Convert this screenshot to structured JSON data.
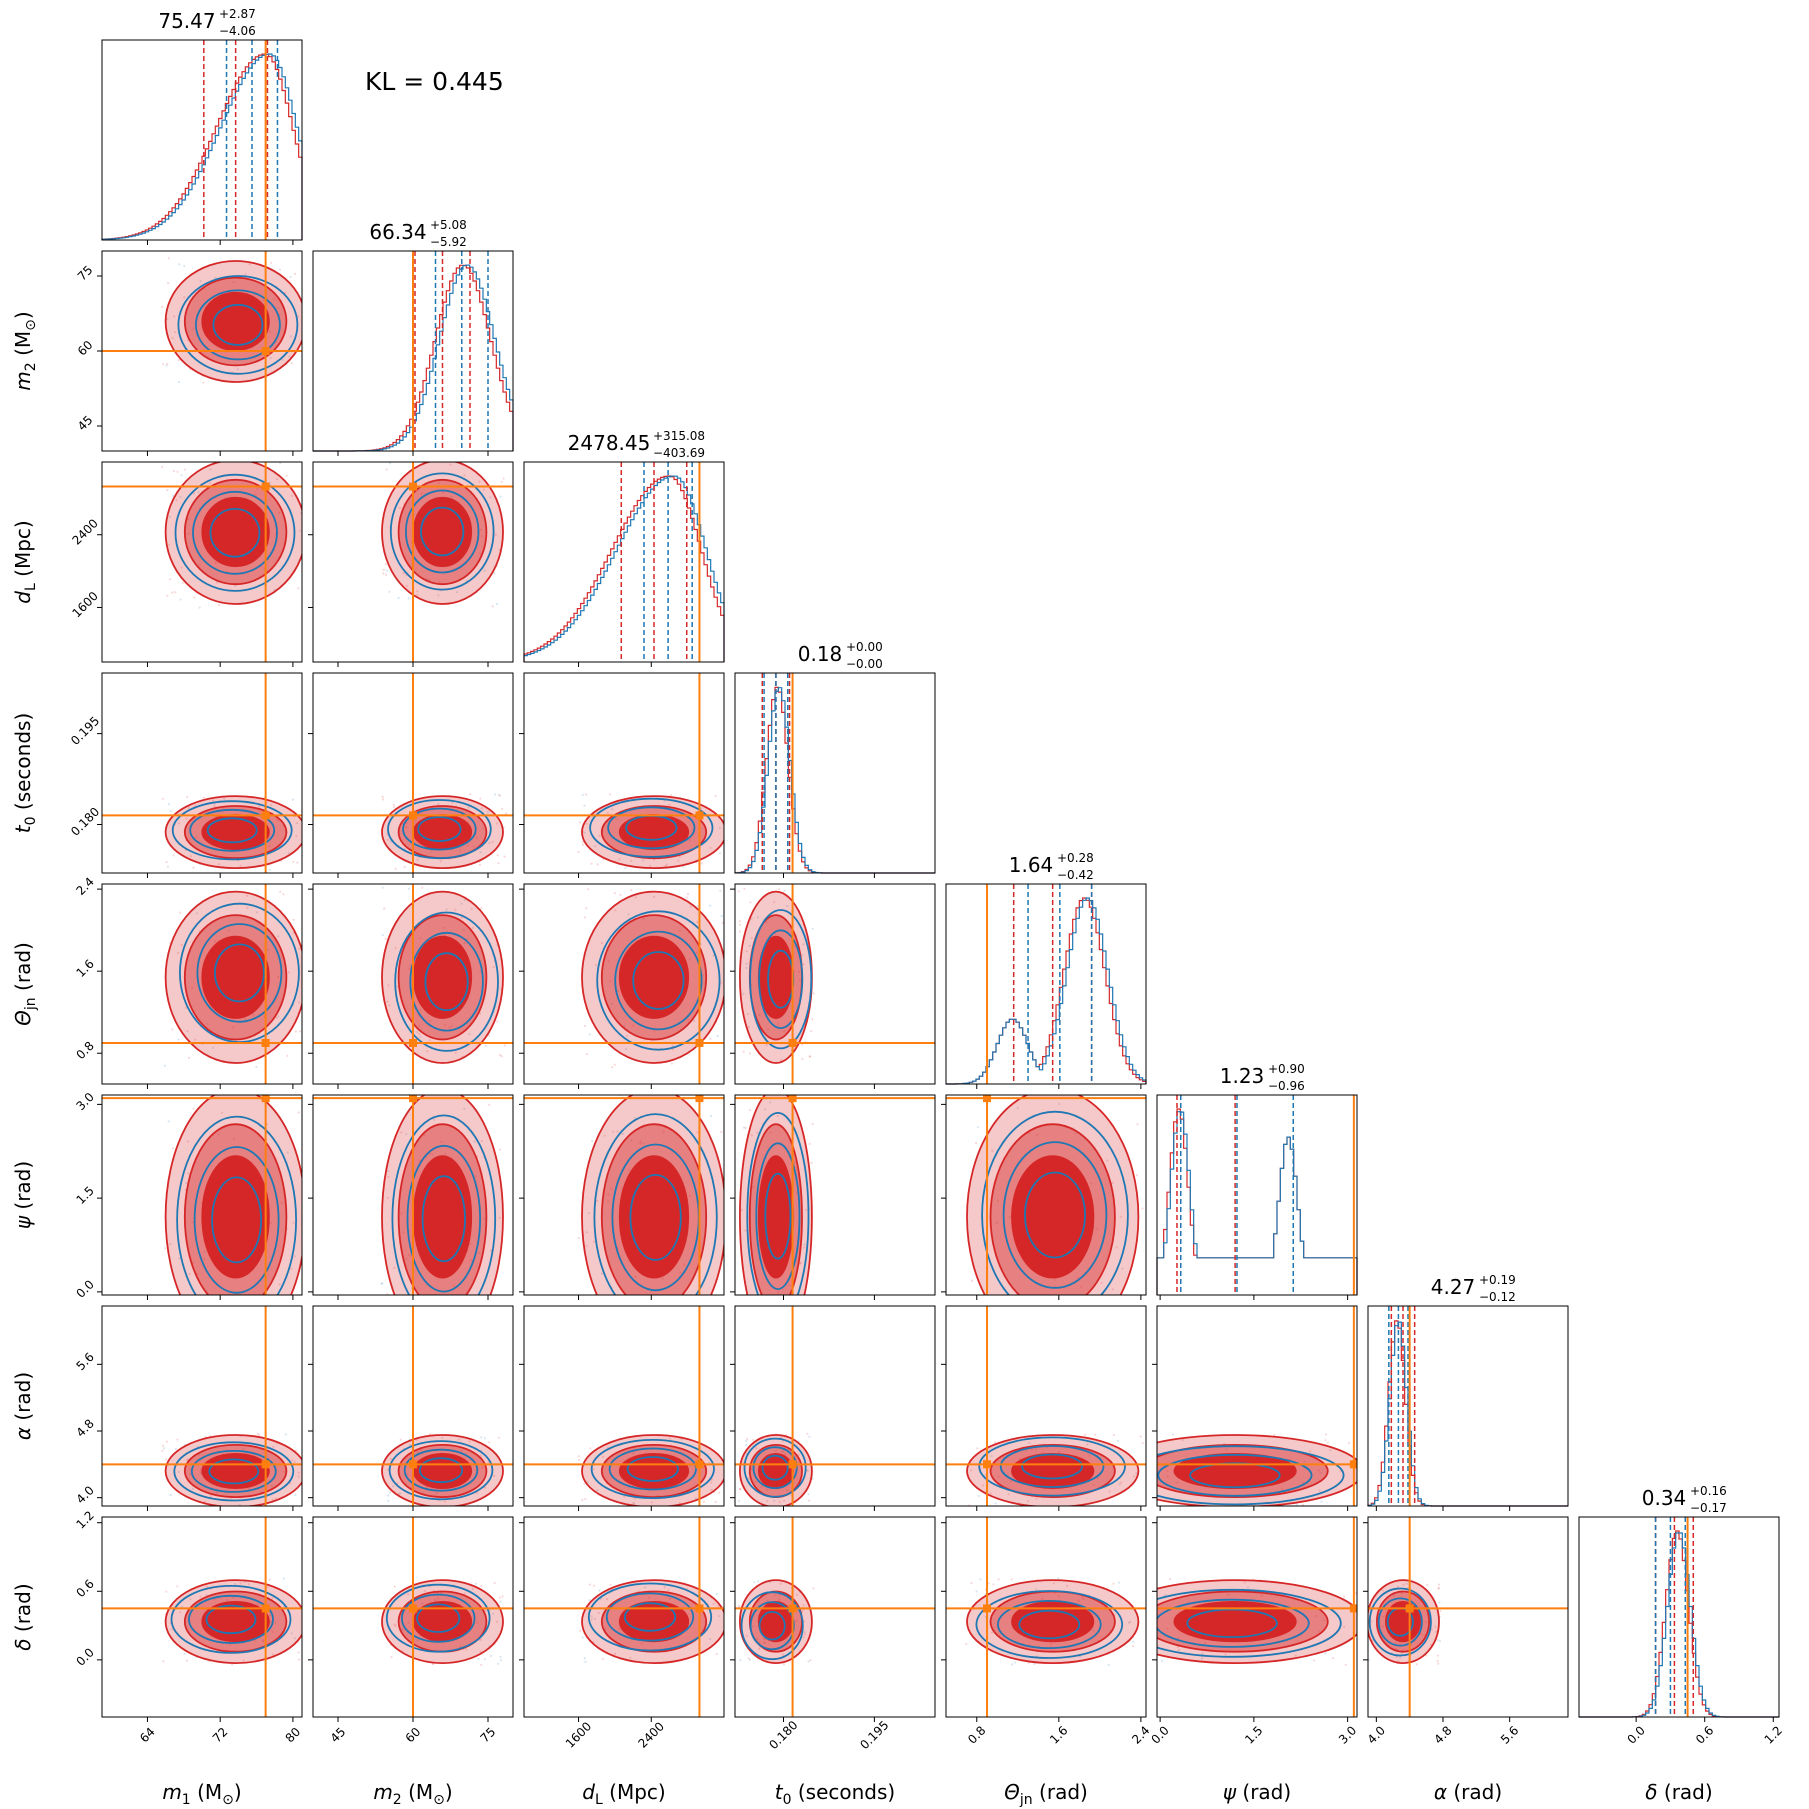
{
  "kl_text": "KL = 0.445",
  "colors": {
    "red": "#d62728",
    "blue": "#1f77b4",
    "truth": "#ff7f0e"
  },
  "params": [
    {
      "key": "m1",
      "label_sym": "m",
      "label_sub": "1",
      "label_unit": "(M",
      "label_unit_sub": "⊙",
      "label_unit_end": ")",
      "range": [
        59,
        81
      ],
      "ticks": [
        64,
        72,
        80
      ],
      "tick_labels": [
        "64",
        "72",
        "80"
      ],
      "truth": 77.0,
      "title_val": "75.47",
      "title_plus": "+2.87",
      "title_minus": "−4.06",
      "q_red": [
        70.2,
        77.2
      ],
      "q_blue": [
        72.7,
        78.3
      ],
      "hist_peak": 77,
      "hist_sd": 3.0,
      "hist_skew": -1
    },
    {
      "key": "m2",
      "label_sym": "m",
      "label_sub": "2",
      "label_unit": "(M",
      "label_unit_sub": "⊙",
      "label_unit_end": ")",
      "range": [
        40,
        80
      ],
      "ticks": [
        45,
        60,
        75
      ],
      "tick_labels": [
        "45",
        "60",
        "75"
      ],
      "truth": 60.0,
      "title_val": "66.34",
      "title_plus": "+5.08",
      "title_minus": "−5.92",
      "q_red": [
        60.4,
        71.4
      ],
      "q_blue": [
        64.5,
        75.0
      ],
      "hist_peak": 70,
      "hist_sd": 5.5,
      "hist_skew": 0
    },
    {
      "key": "dl",
      "label_sym": "d",
      "label_sub": "L",
      "label_unit": "(Mpc)",
      "label_unit_sub": "",
      "label_unit_end": "",
      "range": [
        1000,
        3200
      ],
      "ticks": [
        1600,
        2400
      ],
      "tick_labels": [
        "1600",
        "2400"
      ],
      "truth": 2930,
      "title_val": "2478.45",
      "title_plus": "+315.08",
      "title_minus": "−403.69",
      "q_red": [
        2070,
        2790
      ],
      "q_blue": [
        2320,
        2850
      ],
      "hist_peak": 2600,
      "hist_sd": 350,
      "hist_skew": -1
    },
    {
      "key": "t0",
      "label_sym": "t",
      "label_sub": "0",
      "label_unit": "(seconds)",
      "label_unit_sub": "",
      "label_unit_end": "",
      "range": [
        0.172,
        0.205
      ],
      "ticks": [
        0.18,
        0.195
      ],
      "tick_labels": [
        "0.180",
        "0.195"
      ],
      "truth": 0.1815,
      "title_val": "0.18",
      "title_plus": "+0.00",
      "title_minus": "−0.00",
      "q_red": [
        0.1765,
        0.181
      ],
      "q_blue": [
        0.1768,
        0.1807
      ],
      "hist_peak": 0.179,
      "hist_sd": 0.0018,
      "hist_skew": 0
    },
    {
      "key": "thetajn",
      "label_sym": "Θ",
      "label_sub": "jn",
      "label_unit": "(rad)",
      "label_unit_sub": "",
      "label_unit_end": "",
      "range": [
        0.5,
        2.45
      ],
      "ticks": [
        0.8,
        1.6,
        2.4
      ],
      "tick_labels": [
        "0.8",
        "1.6",
        "2.4"
      ],
      "truth": 0.9,
      "title_val": "1.64",
      "title_plus": "+0.28",
      "title_minus": "−0.42",
      "q_red": [
        1.16,
        1.92
      ],
      "q_blue": [
        1.3,
        1.92
      ],
      "hist_peak": 1.85,
      "hist_sd": 0.2,
      "hist_skew": 0
    },
    {
      "key": "psi",
      "label_sym": "ψ",
      "label_sub": "",
      "label_unit": "(rad)",
      "label_unit_sub": "",
      "label_unit_end": "",
      "range": [
        -0.05,
        3.15
      ],
      "ticks": [
        0.0,
        1.5,
        3.0
      ],
      "tick_labels": [
        "0.0",
        "1.5",
        "3.0"
      ],
      "truth": 3.1,
      "title_val": "1.23",
      "title_plus": "+0.90",
      "title_minus": "−0.96",
      "q_red": [
        0.27,
        2.13
      ],
      "q_blue": [
        0.33,
        2.13
      ],
      "hist_peak": 0.3,
      "hist_sd": 0.15,
      "hist_skew": 0
    },
    {
      "key": "alpha",
      "label_sym": "α",
      "label_sub": "",
      "label_unit": "(rad)",
      "label_unit_sub": "",
      "label_unit_end": "",
      "range": [
        3.9,
        6.3
      ],
      "ticks": [
        4.0,
        4.8,
        5.6
      ],
      "tick_labels": [
        "4.0",
        "4.8",
        "5.6"
      ],
      "truth": 4.4,
      "title_val": "4.27",
      "title_plus": "+0.19",
      "title_minus": "−0.12",
      "q_red": [
        4.18,
        4.46
      ],
      "q_blue": [
        4.15,
        4.38
      ],
      "hist_peak": 4.25,
      "hist_sd": 0.1,
      "hist_skew": 0
    },
    {
      "key": "delta",
      "label_sym": "δ",
      "label_sub": "",
      "label_unit": "(rad)",
      "label_unit_sub": "",
      "label_unit_end": "",
      "range": [
        -0.5,
        1.25
      ],
      "ticks": [
        0.0,
        0.6,
        1.2
      ],
      "tick_labels": [
        "0.0",
        "0.6",
        "1.2"
      ],
      "truth": 0.45,
      "title_val": "0.34",
      "title_plus": "+0.16",
      "title_minus": "−0.17",
      "q_red": [
        0.17,
        0.5
      ],
      "q_blue": [
        0.17,
        0.43
      ],
      "hist_peak": 0.36,
      "hist_sd": 0.1,
      "hist_skew": 0
    }
  ],
  "chart_data": {
    "type": "corner",
    "parameters": [
      "m1 (M⊙)",
      "m2 (M⊙)",
      "dL (Mpc)",
      "t0 (seconds)",
      "Θjn (rad)",
      "ψ (rad)",
      "α (rad)",
      "δ (rad)"
    ],
    "medians": [
      75.47,
      66.34,
      2478.45,
      0.18,
      1.64,
      1.23,
      4.27,
      0.34
    ],
    "upper_errors": [
      2.87,
      5.08,
      315.08,
      0.0,
      0.28,
      0.9,
      0.19,
      0.16
    ],
    "lower_errors": [
      4.06,
      5.92,
      403.69,
      0.0,
      0.42,
      0.96,
      0.12,
      0.17
    ],
    "injected_values": [
      77.0,
      60.0,
      2930,
      0.1815,
      0.9,
      3.1,
      4.4,
      0.45
    ],
    "kl_divergence": 0.445,
    "series": [
      "red posterior (filled contours)",
      "blue posterior (line contours)"
    ]
  }
}
